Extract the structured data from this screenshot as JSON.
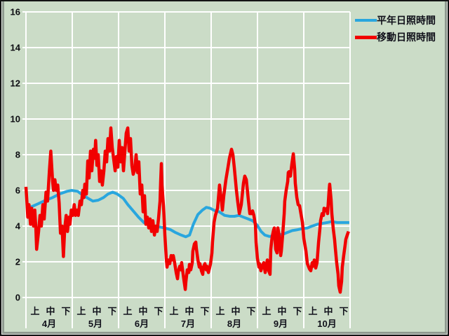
{
  "chart_data": {
    "type": "line",
    "title": "",
    "x_unit": "day_index_from_apr1_equal_width_months",
    "x_axis": {
      "months": [
        "4月",
        "5月",
        "6月",
        "7月",
        "8月",
        "9月",
        "10月"
      ],
      "period_labels": [
        "上",
        "中",
        "下"
      ],
      "days_total": 213
    },
    "y_axis": {
      "min": 0,
      "max": 16,
      "tick_step": 2,
      "tick_labels": [
        "16",
        "14",
        "12",
        "10",
        "8",
        "6",
        "4",
        "2",
        "0"
      ]
    },
    "grid": "on",
    "legend_position": "top-right",
    "colors": {
      "background": "#cbdcc7",
      "gridline": "#ffffff",
      "normal_line": "#29a6de",
      "moving_line": "#f10000",
      "text": "#10101a"
    },
    "legend": [
      {
        "label": "平年日照時間",
        "color": "#29a6de"
      },
      {
        "label": "移動日照時間",
        "color": "#f10000"
      }
    ],
    "series": [
      {
        "name": "平年日照時間",
        "color": "#29a6de",
        "width": 4,
        "points": [
          [
            0,
            5.0
          ],
          [
            4,
            5.1
          ],
          [
            8,
            5.25
          ],
          [
            13,
            5.45
          ],
          [
            17.5,
            5.6
          ],
          [
            22,
            5.8
          ],
          [
            27,
            5.95
          ],
          [
            30,
            6.0
          ],
          [
            34,
            5.95
          ],
          [
            37,
            5.75
          ],
          [
            41,
            5.55
          ],
          [
            44,
            5.4
          ],
          [
            47.5,
            5.45
          ],
          [
            51,
            5.6
          ],
          [
            54,
            5.8
          ],
          [
            57,
            5.9
          ],
          [
            60,
            5.8
          ],
          [
            64,
            5.55
          ],
          [
            67,
            5.2
          ],
          [
            70.5,
            4.85
          ],
          [
            74,
            4.5
          ],
          [
            77.5,
            4.2
          ],
          [
            81,
            4.05
          ],
          [
            84,
            4.0
          ],
          [
            88,
            3.95
          ],
          [
            91,
            3.9
          ],
          [
            95,
            3.8
          ],
          [
            98,
            3.65
          ],
          [
            102,
            3.5
          ],
          [
            105,
            3.4
          ],
          [
            107.5,
            3.5
          ],
          [
            110,
            4.1
          ],
          [
            113,
            4.65
          ],
          [
            116,
            4.9
          ],
          [
            118.5,
            5.05
          ],
          [
            121,
            5.0
          ],
          [
            124.5,
            4.85
          ],
          [
            127,
            4.8
          ],
          [
            130.5,
            4.6
          ],
          [
            134,
            4.55
          ],
          [
            137,
            4.55
          ],
          [
            140,
            4.6
          ],
          [
            143,
            4.5
          ],
          [
            146,
            4.4
          ],
          [
            149,
            4.3
          ],
          [
            152,
            4.05
          ],
          [
            154.5,
            3.7
          ],
          [
            157,
            3.5
          ],
          [
            160,
            3.42
          ],
          [
            163,
            3.45
          ],
          [
            165.5,
            3.5
          ],
          [
            169,
            3.55
          ],
          [
            172,
            3.65
          ],
          [
            175,
            3.75
          ],
          [
            178.5,
            3.8
          ],
          [
            181.5,
            3.85
          ],
          [
            185,
            3.9
          ],
          [
            188,
            4.0
          ],
          [
            191.5,
            4.1
          ],
          [
            194.5,
            4.15
          ],
          [
            198,
            4.2
          ],
          [
            201,
            4.25
          ],
          [
            204.5,
            4.2
          ],
          [
            207.5,
            4.2
          ],
          [
            210.5,
            4.2
          ],
          [
            212.5,
            4.2
          ]
        ]
      },
      {
        "name": "移動日照時間",
        "color": "#f10000",
        "width": 4.5,
        "points": [
          [
            0,
            6.2
          ],
          [
            0.6,
            5.4
          ],
          [
            1.2,
            4.5
          ],
          [
            2,
            5.2
          ],
          [
            3,
            4.1
          ],
          [
            3.8,
            5.0
          ],
          [
            5,
            4.0
          ],
          [
            5.8,
            4.9
          ],
          [
            6.5,
            3.9
          ],
          [
            7,
            2.7
          ],
          [
            8.3,
            3.7
          ],
          [
            9.2,
            4.6
          ],
          [
            10.1,
            4.0
          ],
          [
            11.1,
            5.2
          ],
          [
            12,
            4.4
          ],
          [
            13.2,
            5.9
          ],
          [
            14.2,
            5.4
          ],
          [
            15.4,
            7.1
          ],
          [
            16.3,
            8.2
          ],
          [
            17.5,
            6.5
          ],
          [
            18.1,
            6.0
          ],
          [
            19,
            6.6
          ],
          [
            19.9,
            6.0
          ],
          [
            20.9,
            6.3
          ],
          [
            21.8,
            5.3
          ],
          [
            22.7,
            3.6
          ],
          [
            23.7,
            4.0
          ],
          [
            24.6,
            2.3
          ],
          [
            25.5,
            3.9
          ],
          [
            26.4,
            4.6
          ],
          [
            27.3,
            3.7
          ],
          [
            28.3,
            4.5
          ],
          [
            28.9,
            4.1
          ],
          [
            29.8,
            4.9
          ],
          [
            30.8,
            4.6
          ],
          [
            31.7,
            5.2
          ],
          [
            32.6,
            4.6
          ],
          [
            33.5,
            4.9
          ],
          [
            34.4,
            4.6
          ],
          [
            35.5,
            5.4
          ],
          [
            36.4,
            5.2
          ],
          [
            37.3,
            6.0
          ],
          [
            38.1,
            5.6
          ],
          [
            38.7,
            6.35
          ],
          [
            39.7,
            5.8
          ],
          [
            40.6,
            7.65
          ],
          [
            41.5,
            6.7
          ],
          [
            42.4,
            8.2
          ],
          [
            43.3,
            7.1
          ],
          [
            44.3,
            8.3
          ],
          [
            45.2,
            7.8
          ],
          [
            45.8,
            8.8
          ],
          [
            46.6,
            7.4
          ],
          [
            47.5,
            8.0
          ],
          [
            48.4,
            6.5
          ],
          [
            49.3,
            7.1
          ],
          [
            50.2,
            6.3
          ],
          [
            51.2,
            7.1
          ],
          [
            52.1,
            8.2
          ],
          [
            53,
            7.6
          ],
          [
            53.9,
            8.9
          ],
          [
            54.9,
            8.2
          ],
          [
            55.8,
            9.5
          ],
          [
            56.7,
            8.4
          ],
          [
            57.6,
            7.8
          ],
          [
            58.6,
            7.1
          ],
          [
            59.5,
            7.9
          ],
          [
            60.4,
            7.3
          ],
          [
            61.3,
            8.8
          ],
          [
            62.2,
            7.6
          ],
          [
            63.2,
            8.4
          ],
          [
            64.1,
            7.1
          ],
          [
            65,
            8.2
          ],
          [
            65.9,
            9.2
          ],
          [
            66.9,
            9.5
          ],
          [
            67.8,
            8.2
          ],
          [
            68.7,
            8.9
          ],
          [
            69.6,
            7.4
          ],
          [
            70.5,
            6.9
          ],
          [
            71.5,
            7.2
          ],
          [
            72.4,
            8.0
          ],
          [
            73.3,
            7.0
          ],
          [
            74.2,
            7.6
          ],
          [
            75.1,
            5.8
          ],
          [
            76.1,
            6.3
          ],
          [
            77,
            4.8
          ],
          [
            77.9,
            5.7
          ],
          [
            78.8,
            4.1
          ],
          [
            79.8,
            4.5
          ],
          [
            80.7,
            3.9
          ],
          [
            81.6,
            4.4
          ],
          [
            82.5,
            3.7
          ],
          [
            83.4,
            4.3
          ],
          [
            84.4,
            3.5
          ],
          [
            85.3,
            4.0
          ],
          [
            86.2,
            3.7
          ],
          [
            87.1,
            4.4
          ],
          [
            88.1,
            5.4
          ],
          [
            88.5,
            6.5
          ],
          [
            89,
            7.5
          ],
          [
            89.4,
            6.3
          ],
          [
            90.4,
            5.1
          ],
          [
            91.3,
            3.5
          ],
          [
            92.2,
            2.2
          ],
          [
            92.7,
            1.7
          ],
          [
            93.6,
            2.1
          ],
          [
            94.5,
            1.9
          ],
          [
            95.4,
            2.35
          ],
          [
            95.9,
            2.1
          ],
          [
            96.8,
            2.35
          ],
          [
            97.7,
            1.95
          ],
          [
            98.7,
            1.4
          ],
          [
            99.6,
            1.05
          ],
          [
            100.1,
            1.45
          ],
          [
            101,
            1.75
          ],
          [
            101.9,
            1.55
          ],
          [
            102.3,
            1.95
          ],
          [
            103.7,
            1.05
          ],
          [
            104.7,
            0.45
          ],
          [
            105.1,
            0.9
          ],
          [
            106,
            1.55
          ],
          [
            107,
            1.4
          ],
          [
            107.4,
            1.85
          ],
          [
            108.3,
            1.55
          ],
          [
            109.3,
            1.95
          ],
          [
            109.7,
            2.6
          ],
          [
            110.7,
            3.0
          ],
          [
            111.6,
            3.1
          ],
          [
            112,
            2.75
          ],
          [
            113,
            2.1
          ],
          [
            113.9,
            1.7
          ],
          [
            114.3,
            1.9
          ],
          [
            115.3,
            1.5
          ],
          [
            116.2,
            1.3
          ],
          [
            116.6,
            1.7
          ],
          [
            117.6,
            1.9
          ],
          [
            118.5,
            1.55
          ],
          [
            118.9,
            1.75
          ],
          [
            119.9,
            1.4
          ],
          [
            120.8,
            1.7
          ],
          [
            121.3,
            1.9
          ],
          [
            122.2,
            2.5
          ],
          [
            122.6,
            3.1
          ],
          [
            123.6,
            4.2
          ],
          [
            124.5,
            4.6
          ],
          [
            125.9,
            5.0
          ],
          [
            127.2,
            6.3
          ],
          [
            128.2,
            5.6
          ],
          [
            129.1,
            4.9
          ],
          [
            130,
            5.7
          ],
          [
            131.4,
            6.6
          ],
          [
            132.8,
            7.3
          ],
          [
            133.7,
            7.8
          ],
          [
            135.1,
            8.3
          ],
          [
            136,
            8.0
          ],
          [
            136.9,
            7.3
          ],
          [
            138.3,
            6.0
          ],
          [
            139.2,
            5.35
          ],
          [
            140.2,
            4.7
          ],
          [
            141.5,
            5.2
          ],
          [
            142.9,
            6.4
          ],
          [
            143.8,
            6.8
          ],
          [
            144.8,
            6.6
          ],
          [
            146.1,
            5.5
          ],
          [
            147.1,
            4.7
          ],
          [
            148.4,
            4.7
          ],
          [
            148.9,
            4.85
          ],
          [
            149.8,
            4.6
          ],
          [
            150.8,
            4.05
          ],
          [
            151.2,
            3.1
          ],
          [
            152.1,
            2.2
          ],
          [
            153.1,
            1.7
          ],
          [
            153.5,
            1.9
          ],
          [
            154.4,
            1.5
          ],
          [
            155.4,
            1.8
          ],
          [
            156.3,
            1.95
          ],
          [
            157.2,
            1.4
          ],
          [
            158.6,
            2.1
          ],
          [
            159.5,
            1.5
          ],
          [
            160.4,
            1.3
          ],
          [
            160.9,
            2.7
          ],
          [
            161.8,
            3.4
          ],
          [
            162.8,
            3.8
          ],
          [
            163.2,
            3.9
          ],
          [
            164.1,
            2.7
          ],
          [
            165,
            2.5
          ],
          [
            165.5,
            3.9
          ],
          [
            166.4,
            3.5
          ],
          [
            167.4,
            2.35
          ],
          [
            167.8,
            2.6
          ],
          [
            168.7,
            3.5
          ],
          [
            169.7,
            4.7
          ],
          [
            170.1,
            5.4
          ],
          [
            171,
            6.0
          ],
          [
            172,
            6.5
          ],
          [
            172.4,
            7.0
          ],
          [
            172.9,
            7.05
          ],
          [
            173.8,
            6.8
          ],
          [
            174.7,
            7.45
          ],
          [
            175.7,
            8.05
          ],
          [
            176.6,
            7.2
          ],
          [
            177,
            6.4
          ],
          [
            178,
            5.6
          ],
          [
            178.9,
            5.2
          ],
          [
            179.8,
            5.15
          ],
          [
            180.7,
            4.7
          ],
          [
            181.7,
            4.2
          ],
          [
            182.1,
            3.8
          ],
          [
            182.6,
            3.3
          ],
          [
            184,
            2.6
          ],
          [
            184.9,
            1.9
          ],
          [
            186.3,
            1.6
          ],
          [
            187.2,
            1.5
          ],
          [
            188.1,
            1.95
          ],
          [
            188.6,
            1.75
          ],
          [
            189.5,
            2.1
          ],
          [
            190.4,
            1.65
          ],
          [
            191.3,
            1.95
          ],
          [
            192.3,
            3.1
          ],
          [
            193.2,
            3.9
          ],
          [
            193.6,
            4.3
          ],
          [
            194.6,
            4.7
          ],
          [
            195.5,
            4.6
          ],
          [
            195.9,
            5.0
          ],
          [
            196.9,
            4.85
          ],
          [
            197.8,
            5.0
          ],
          [
            198.2,
            4.7
          ],
          [
            199.2,
            6.0
          ],
          [
            199.6,
            6.35
          ],
          [
            200.5,
            5.5
          ],
          [
            201,
            4.7
          ],
          [
            201.9,
            3.9
          ],
          [
            202.8,
            3.25
          ],
          [
            203.3,
            2.75
          ],
          [
            204.2,
            1.95
          ],
          [
            205.1,
            1.3
          ],
          [
            205.6,
            0.65
          ],
          [
            206.5,
            0.3
          ],
          [
            207.4,
            0.9
          ],
          [
            207.9,
            1.7
          ],
          [
            208.8,
            2.35
          ],
          [
            209.7,
            2.9
          ],
          [
            210.2,
            3.25
          ],
          [
            211.1,
            3.5
          ],
          [
            212,
            3.7
          ]
        ]
      }
    ]
  }
}
